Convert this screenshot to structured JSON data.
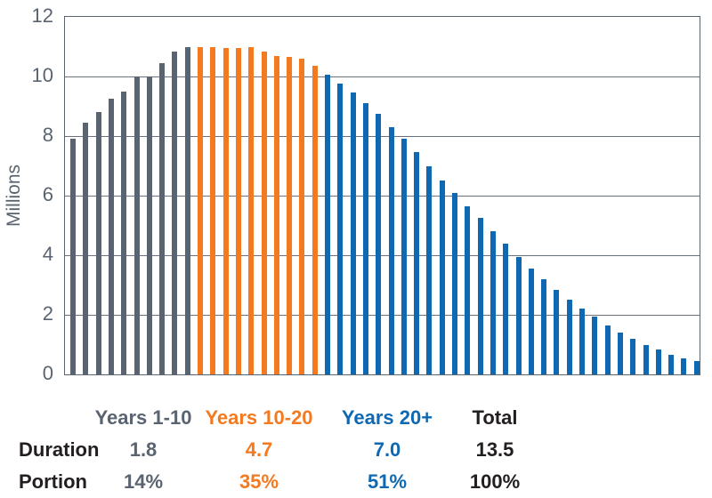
{
  "colors": {
    "gray": "#5a6470",
    "orange": "#f5791f",
    "blue": "#0e68b2",
    "dark": "#231f20",
    "grid": "#6a7280"
  },
  "chart_data": {
    "type": "bar",
    "title": "",
    "xlabel": "",
    "ylabel": "Millions",
    "ylim": [
      0,
      12
    ],
    "yticks": [
      0,
      2,
      4,
      6,
      8,
      10,
      12
    ],
    "grid": "horizontal gridlines at each y tick, full plot border",
    "legend_position": "none (groups labeled in table below)",
    "series": [
      {
        "name": "Years 1-10",
        "color": "#5a6470",
        "values": [
          7.9,
          8.45,
          8.8,
          9.25,
          9.5,
          10.0,
          10.0,
          10.45,
          10.85,
          11.0
        ]
      },
      {
        "name": "Years 10-20",
        "color": "#f5791f",
        "values": [
          11.0,
          11.0,
          10.95,
          10.95,
          11.0,
          10.85,
          10.7,
          10.65,
          10.6,
          10.35
        ]
      },
      {
        "name": "Years 20+",
        "color": "#0e68b2",
        "values": [
          10.05,
          9.75,
          9.45,
          9.1,
          8.75,
          8.3,
          7.9,
          7.45,
          7.0,
          6.5,
          6.1,
          5.65,
          5.25,
          4.8,
          4.4,
          3.95,
          3.55,
          3.2,
          2.85,
          2.5,
          2.2,
          1.95,
          1.65,
          1.4,
          1.2,
          1.0,
          0.85,
          0.65,
          0.55,
          0.45
        ]
      }
    ]
  },
  "table": {
    "columns": [
      {
        "label": "Years 1-10",
        "color": "gray"
      },
      {
        "label": "Years 10-20",
        "color": "orange"
      },
      {
        "label": "Years 20+",
        "color": "blue"
      },
      {
        "label": "Total",
        "color": "dark"
      }
    ],
    "rows": [
      {
        "label": "Duration",
        "values": [
          "1.8",
          "4.7",
          "7.0",
          "13.5"
        ]
      },
      {
        "label": "Portion",
        "values": [
          "14%",
          "35%",
          "51%",
          "100%"
        ]
      }
    ]
  }
}
